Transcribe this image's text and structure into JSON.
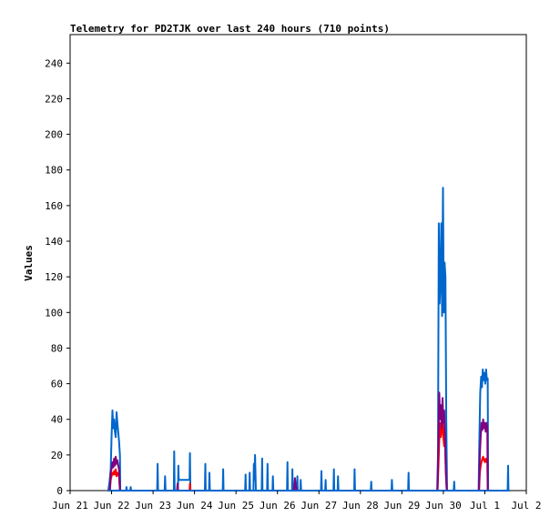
{
  "chart_data": {
    "type": "line",
    "title": "Telemetry for PD2TJK over last 240 hours (710 points)",
    "xlabel": "",
    "ylabel": "Values",
    "ylim": [
      0,
      256
    ],
    "yticks": [
      0,
      20,
      40,
      60,
      80,
      100,
      120,
      140,
      160,
      180,
      200,
      220,
      240
    ],
    "xlim": [
      0,
      11
    ],
    "xticks": [
      {
        "pos": 0,
        "label": "Jun 21"
      },
      {
        "pos": 1,
        "label": "Jun 22"
      },
      {
        "pos": 2,
        "label": "Jun 23"
      },
      {
        "pos": 3,
        "label": "Jun 24"
      },
      {
        "pos": 4,
        "label": "Jun 25"
      },
      {
        "pos": 5,
        "label": "Jun 26"
      },
      {
        "pos": 6,
        "label": "Jun 27"
      },
      {
        "pos": 7,
        "label": "Jun 28"
      },
      {
        "pos": 8,
        "label": "Jun 29"
      },
      {
        "pos": 9,
        "label": "Jun 30"
      },
      {
        "pos": 10,
        "label": "Jul 1"
      },
      {
        "pos": 11,
        "label": "Jul 2"
      }
    ],
    "grid": false,
    "series": [
      {
        "color": "#0066cc",
        "points": [
          [
            0.92,
            0
          ],
          [
            0.95,
            5
          ],
          [
            0.98,
            12
          ],
          [
            1.0,
            30
          ],
          [
            1.02,
            45
          ],
          [
            1.04,
            35
          ],
          [
            1.06,
            40
          ],
          [
            1.08,
            33
          ],
          [
            1.1,
            30
          ],
          [
            1.12,
            44
          ],
          [
            1.14,
            38
          ],
          [
            1.16,
            33
          ],
          [
            1.18,
            28
          ],
          [
            1.2,
            20
          ],
          [
            1.21,
            0
          ],
          [
            1.35,
            0
          ],
          [
            1.36,
            2
          ],
          [
            1.37,
            0
          ],
          [
            1.45,
            0
          ],
          [
            1.46,
            2
          ],
          [
            1.47,
            0
          ],
          [
            2.1,
            0
          ],
          [
            2.11,
            15
          ],
          [
            2.12,
            0
          ],
          [
            2.28,
            0
          ],
          [
            2.29,
            8
          ],
          [
            2.3,
            0
          ],
          [
            2.5,
            0
          ],
          [
            2.51,
            22
          ],
          [
            2.52,
            0
          ],
          [
            2.6,
            0
          ],
          [
            2.61,
            14
          ],
          [
            2.62,
            6
          ],
          [
            2.72,
            6
          ],
          [
            2.82,
            6
          ],
          [
            2.88,
            6
          ],
          [
            2.89,
            21
          ],
          [
            2.9,
            0
          ],
          [
            3.25,
            0
          ],
          [
            3.26,
            15
          ],
          [
            3.27,
            0
          ],
          [
            3.35,
            0
          ],
          [
            3.36,
            10
          ],
          [
            3.37,
            0
          ],
          [
            3.68,
            0
          ],
          [
            3.69,
            12
          ],
          [
            3.7,
            0
          ],
          [
            4.22,
            0
          ],
          [
            4.23,
            9
          ],
          [
            4.24,
            0
          ],
          [
            4.32,
            0
          ],
          [
            4.33,
            10
          ],
          [
            4.34,
            0
          ],
          [
            4.42,
            0
          ],
          [
            4.43,
            15
          ],
          [
            4.44,
            6
          ],
          [
            4.46,
            20
          ],
          [
            4.48,
            0
          ],
          [
            4.62,
            0
          ],
          [
            4.63,
            18
          ],
          [
            4.64,
            0
          ],
          [
            4.75,
            0
          ],
          [
            4.76,
            15
          ],
          [
            4.77,
            0
          ],
          [
            4.88,
            0
          ],
          [
            4.89,
            8
          ],
          [
            4.9,
            0
          ],
          [
            5.23,
            0
          ],
          [
            5.24,
            16
          ],
          [
            5.25,
            0
          ],
          [
            5.35,
            0
          ],
          [
            5.36,
            12
          ],
          [
            5.37,
            0
          ],
          [
            5.47,
            0
          ],
          [
            5.48,
            8
          ],
          [
            5.49,
            0
          ],
          [
            5.55,
            0
          ],
          [
            5.56,
            6
          ],
          [
            5.57,
            0
          ],
          [
            6.05,
            0
          ],
          [
            6.06,
            11
          ],
          [
            6.07,
            0
          ],
          [
            6.15,
            0
          ],
          [
            6.16,
            6
          ],
          [
            6.17,
            0
          ],
          [
            6.35,
            0
          ],
          [
            6.36,
            12
          ],
          [
            6.37,
            0
          ],
          [
            6.45,
            0
          ],
          [
            6.46,
            8
          ],
          [
            6.47,
            0
          ],
          [
            6.85,
            0
          ],
          [
            6.86,
            12
          ],
          [
            6.87,
            0
          ],
          [
            7.25,
            0
          ],
          [
            7.26,
            5
          ],
          [
            7.27,
            0
          ],
          [
            7.75,
            0
          ],
          [
            7.76,
            6
          ],
          [
            7.77,
            0
          ],
          [
            8.15,
            0
          ],
          [
            8.16,
            10
          ],
          [
            8.17,
            0
          ],
          [
            8.85,
            0
          ],
          [
            8.87,
            20
          ],
          [
            8.89,
            150
          ],
          [
            8.91,
            105
          ],
          [
            8.93,
            118
          ],
          [
            8.95,
            150
          ],
          [
            8.97,
            98
          ],
          [
            8.99,
            170
          ],
          [
            9.01,
            100
          ],
          [
            9.03,
            128
          ],
          [
            9.05,
            120
          ],
          [
            9.07,
            40
          ],
          [
            9.09,
            0
          ],
          [
            9.25,
            0
          ],
          [
            9.26,
            5
          ],
          [
            9.27,
            0
          ],
          [
            9.85,
            0
          ],
          [
            9.87,
            30
          ],
          [
            9.89,
            55
          ],
          [
            9.91,
            64
          ],
          [
            9.93,
            58
          ],
          [
            9.95,
            68
          ],
          [
            9.97,
            62
          ],
          [
            9.99,
            66
          ],
          [
            10.01,
            60
          ],
          [
            10.03,
            68
          ],
          [
            10.05,
            62
          ],
          [
            10.07,
            63
          ],
          [
            10.08,
            0
          ],
          [
            10.55,
            0
          ],
          [
            10.56,
            14
          ],
          [
            10.57,
            0
          ]
        ]
      },
      {
        "color": "#ff0000",
        "points": [
          [
            0.96,
            0
          ],
          [
            0.98,
            6
          ],
          [
            1.0,
            8
          ],
          [
            1.02,
            10
          ],
          [
            1.04,
            9
          ],
          [
            1.06,
            11
          ],
          [
            1.08,
            9
          ],
          [
            1.1,
            12
          ],
          [
            1.12,
            8
          ],
          [
            1.14,
            10
          ],
          [
            1.16,
            9
          ],
          [
            1.18,
            8
          ],
          [
            1.2,
            0
          ],
          [
            2.58,
            0
          ],
          [
            2.59,
            3
          ],
          [
            2.6,
            0
          ],
          [
            2.88,
            0
          ],
          [
            2.89,
            4
          ],
          [
            2.9,
            0
          ],
          [
            5.4,
            0
          ],
          [
            5.42,
            4
          ],
          [
            5.44,
            0
          ],
          [
            8.86,
            0
          ],
          [
            8.88,
            12
          ],
          [
            8.9,
            28
          ],
          [
            8.92,
            38
          ],
          [
            8.94,
            30
          ],
          [
            8.96,
            34
          ],
          [
            8.98,
            40
          ],
          [
            9.0,
            30
          ],
          [
            9.02,
            25
          ],
          [
            9.04,
            28
          ],
          [
            9.06,
            10
          ],
          [
            9.08,
            0
          ],
          [
            9.86,
            0
          ],
          [
            9.88,
            10
          ],
          [
            9.9,
            14
          ],
          [
            9.92,
            16
          ],
          [
            9.94,
            18
          ],
          [
            9.96,
            19
          ],
          [
            9.98,
            17
          ],
          [
            10.0,
            16
          ],
          [
            10.02,
            18
          ],
          [
            10.04,
            16
          ],
          [
            10.06,
            17
          ],
          [
            10.07,
            0
          ]
        ]
      },
      {
        "color": "#800080",
        "points": [
          [
            0.96,
            0
          ],
          [
            0.98,
            10
          ],
          [
            1.0,
            12
          ],
          [
            1.02,
            16
          ],
          [
            1.04,
            13
          ],
          [
            1.06,
            18
          ],
          [
            1.08,
            14
          ],
          [
            1.1,
            19
          ],
          [
            1.12,
            15
          ],
          [
            1.14,
            17
          ],
          [
            1.16,
            14
          ],
          [
            1.18,
            12
          ],
          [
            1.2,
            0
          ],
          [
            2.58,
            0
          ],
          [
            2.59,
            4
          ],
          [
            2.6,
            0
          ],
          [
            5.4,
            0
          ],
          [
            5.42,
            7
          ],
          [
            5.44,
            3
          ],
          [
            5.46,
            0
          ],
          [
            8.86,
            0
          ],
          [
            8.88,
            25
          ],
          [
            8.9,
            55
          ],
          [
            8.92,
            40
          ],
          [
            8.94,
            48
          ],
          [
            8.96,
            35
          ],
          [
            8.98,
            52
          ],
          [
            9.0,
            38
          ],
          [
            9.02,
            45
          ],
          [
            9.04,
            30
          ],
          [
            9.06,
            12
          ],
          [
            9.08,
            0
          ],
          [
            9.86,
            0
          ],
          [
            9.88,
            20
          ],
          [
            9.9,
            30
          ],
          [
            9.92,
            38
          ],
          [
            9.94,
            34
          ],
          [
            9.96,
            40
          ],
          [
            9.98,
            35
          ],
          [
            10.0,
            38
          ],
          [
            10.02,
            33
          ],
          [
            10.04,
            38
          ],
          [
            10.06,
            35
          ],
          [
            10.07,
            0
          ]
        ]
      }
    ]
  }
}
